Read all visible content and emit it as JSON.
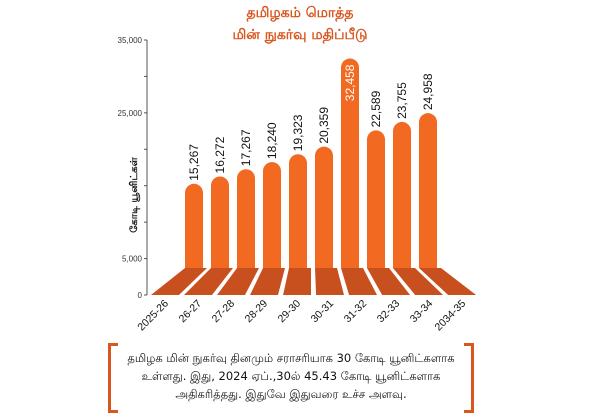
{
  "chart_data": {
    "type": "bar",
    "title": "தமிழகம் மொத்த",
    "subtitle": "மின் நுகர்வு மதிப்பீடு",
    "ylabel": "கோடி யூனிட்கள்",
    "xlabel": "",
    "ylim": [
      0,
      35000
    ],
    "yticks": [
      0,
      5000,
      25000,
      35000
    ],
    "ytick_labels": [
      "0",
      "5,000",
      "25,000",
      "35,000"
    ],
    "categories": [
      "2025-26",
      "26-27",
      "27-28",
      "28-29",
      "29-30",
      "30-31",
      "31-32",
      "32-33",
      "33-34",
      "2034-35"
    ],
    "values": [
      15267,
      16272,
      17267,
      18240,
      19323,
      20359,
      32458,
      22589,
      23755,
      24958
    ],
    "value_labels": [
      "15,267",
      "16,272",
      "17,267",
      "18,240",
      "19,323",
      "20,359",
      "32,458",
      "22,589",
      "23,755",
      "24,958"
    ],
    "grid": false,
    "bar_color": "#f26a21",
    "floor_color": "#c8501f"
  },
  "note": "தமிழக மின் நுகர்வு தினமும் சராசரியாக 30 கோடி யூனிட்களாக உள்ளது. இது, 2024 ஏப்.,30ல் 45.43 கோடி யூனிட்களாக அதிகரித்தது. இதுவே இதுவரை உச்ச அளவு."
}
